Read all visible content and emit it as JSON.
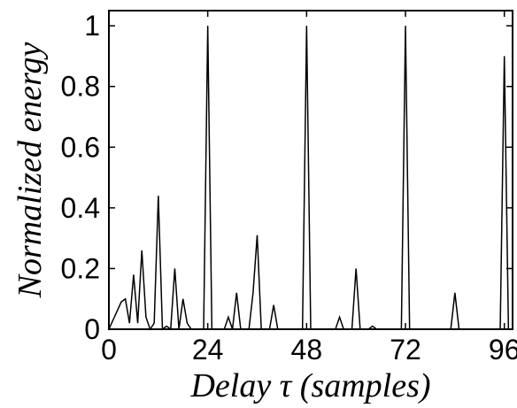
{
  "chart_data": {
    "type": "line",
    "title": "",
    "xlabel": "Delay τ (samples)",
    "ylabel": "Normalized energy",
    "xlim": [
      0,
      98
    ],
    "ylim": [
      0,
      1.05
    ],
    "xticks": [
      0,
      24,
      48,
      72,
      96
    ],
    "yticks": [
      0,
      0.2,
      0.4,
      0.6,
      0.8,
      1
    ],
    "grid": false,
    "legend": "none",
    "line_color": "#000000",
    "series": [
      {
        "x": [
          0,
          1,
          2,
          3,
          4,
          5,
          6,
          7,
          8,
          9,
          10,
          11,
          12,
          13,
          14,
          15,
          16,
          17,
          18,
          19,
          20,
          21,
          22,
          23,
          24,
          25,
          26,
          27,
          28,
          29,
          30,
          31,
          32,
          33,
          34,
          35,
          36,
          37,
          38,
          39,
          40,
          41,
          42,
          43,
          44,
          45,
          46,
          47,
          48,
          49,
          50,
          51,
          52,
          53,
          54,
          55,
          56,
          57,
          58,
          59,
          60,
          61,
          62,
          63,
          64,
          65,
          66,
          67,
          68,
          69,
          70,
          71,
          72,
          73,
          74,
          75,
          76,
          77,
          78,
          79,
          80,
          81,
          82,
          83,
          84,
          85,
          86,
          87,
          88,
          89,
          90,
          91,
          92,
          93,
          94,
          95,
          96,
          97
        ],
        "y": [
          0,
          0.03,
          0.06,
          0.09,
          0.1,
          0.02,
          0.18,
          0.02,
          0.26,
          0.04,
          0,
          0.02,
          0.44,
          0,
          0.01,
          0,
          0.2,
          0,
          0.1,
          0.02,
          0,
          0,
          0,
          0,
          1,
          0,
          0,
          0,
          0,
          0.04,
          0,
          0.12,
          0,
          0,
          0,
          0.12,
          0.31,
          0,
          0,
          0,
          0.08,
          0,
          0,
          0,
          0,
          0,
          0,
          0,
          1,
          0,
          0,
          0,
          0,
          0,
          0,
          0,
          0.04,
          0,
          0,
          0,
          0.2,
          0,
          0,
          0,
          0.01,
          0,
          0,
          0,
          0,
          0,
          0,
          0,
          1,
          0,
          0,
          0,
          0,
          0,
          0,
          0,
          0,
          0,
          0,
          0,
          0.12,
          0,
          0,
          0,
          0,
          0,
          0,
          0,
          0,
          0,
          0,
          0,
          0.9,
          0
        ]
      }
    ]
  }
}
